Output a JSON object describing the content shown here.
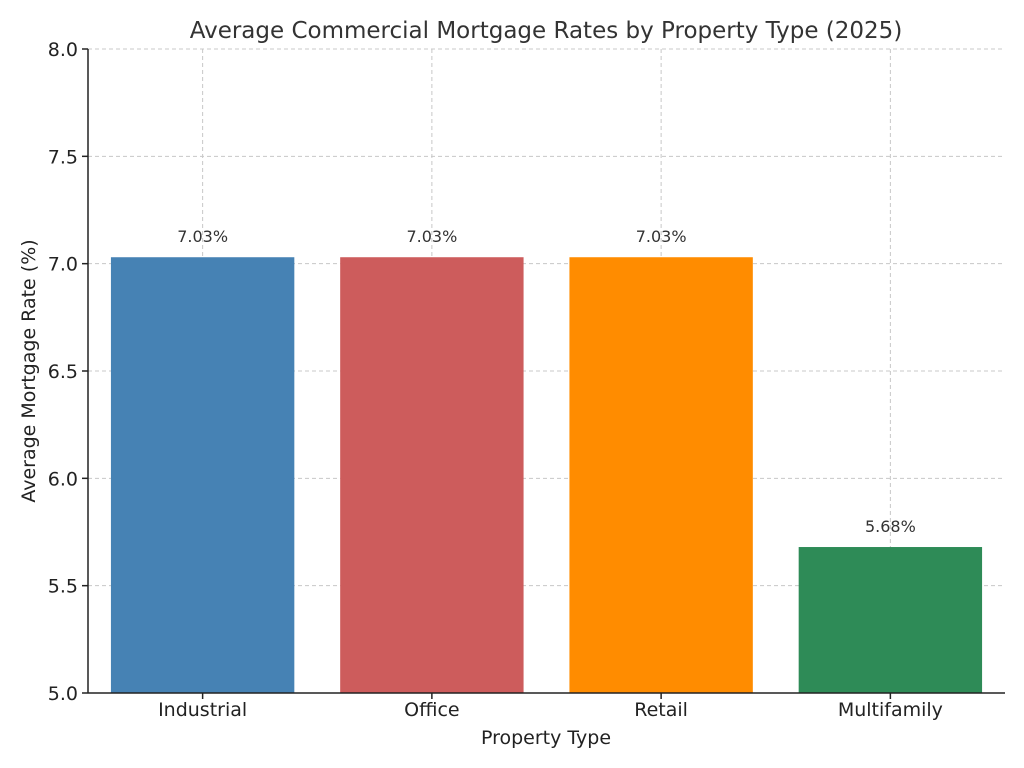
{
  "chart_data": {
    "type": "bar",
    "title": "Average Commercial Mortgage Rates by Property Type (2025)",
    "xlabel": "Property Type",
    "ylabel": "Average Mortgage Rate (%)",
    "categories": [
      "Industrial",
      "Office",
      "Retail",
      "Multifamily"
    ],
    "values": [
      7.03,
      7.03,
      7.03,
      5.68
    ],
    "data_labels": [
      "7.03%",
      "7.03%",
      "7.03%",
      "5.68%"
    ],
    "colors": [
      "#4682b4",
      "#cd5c5c",
      "#ff8c00",
      "#2e8b57"
    ],
    "ylim": [
      5.0,
      8.0
    ],
    "yticks": [
      5.0,
      5.5,
      6.0,
      6.5,
      7.0,
      7.5,
      8.0
    ],
    "ytick_labels": [
      "5.0",
      "5.5",
      "6.0",
      "6.5",
      "7.0",
      "7.5",
      "8.0"
    ],
    "grid": true
  }
}
